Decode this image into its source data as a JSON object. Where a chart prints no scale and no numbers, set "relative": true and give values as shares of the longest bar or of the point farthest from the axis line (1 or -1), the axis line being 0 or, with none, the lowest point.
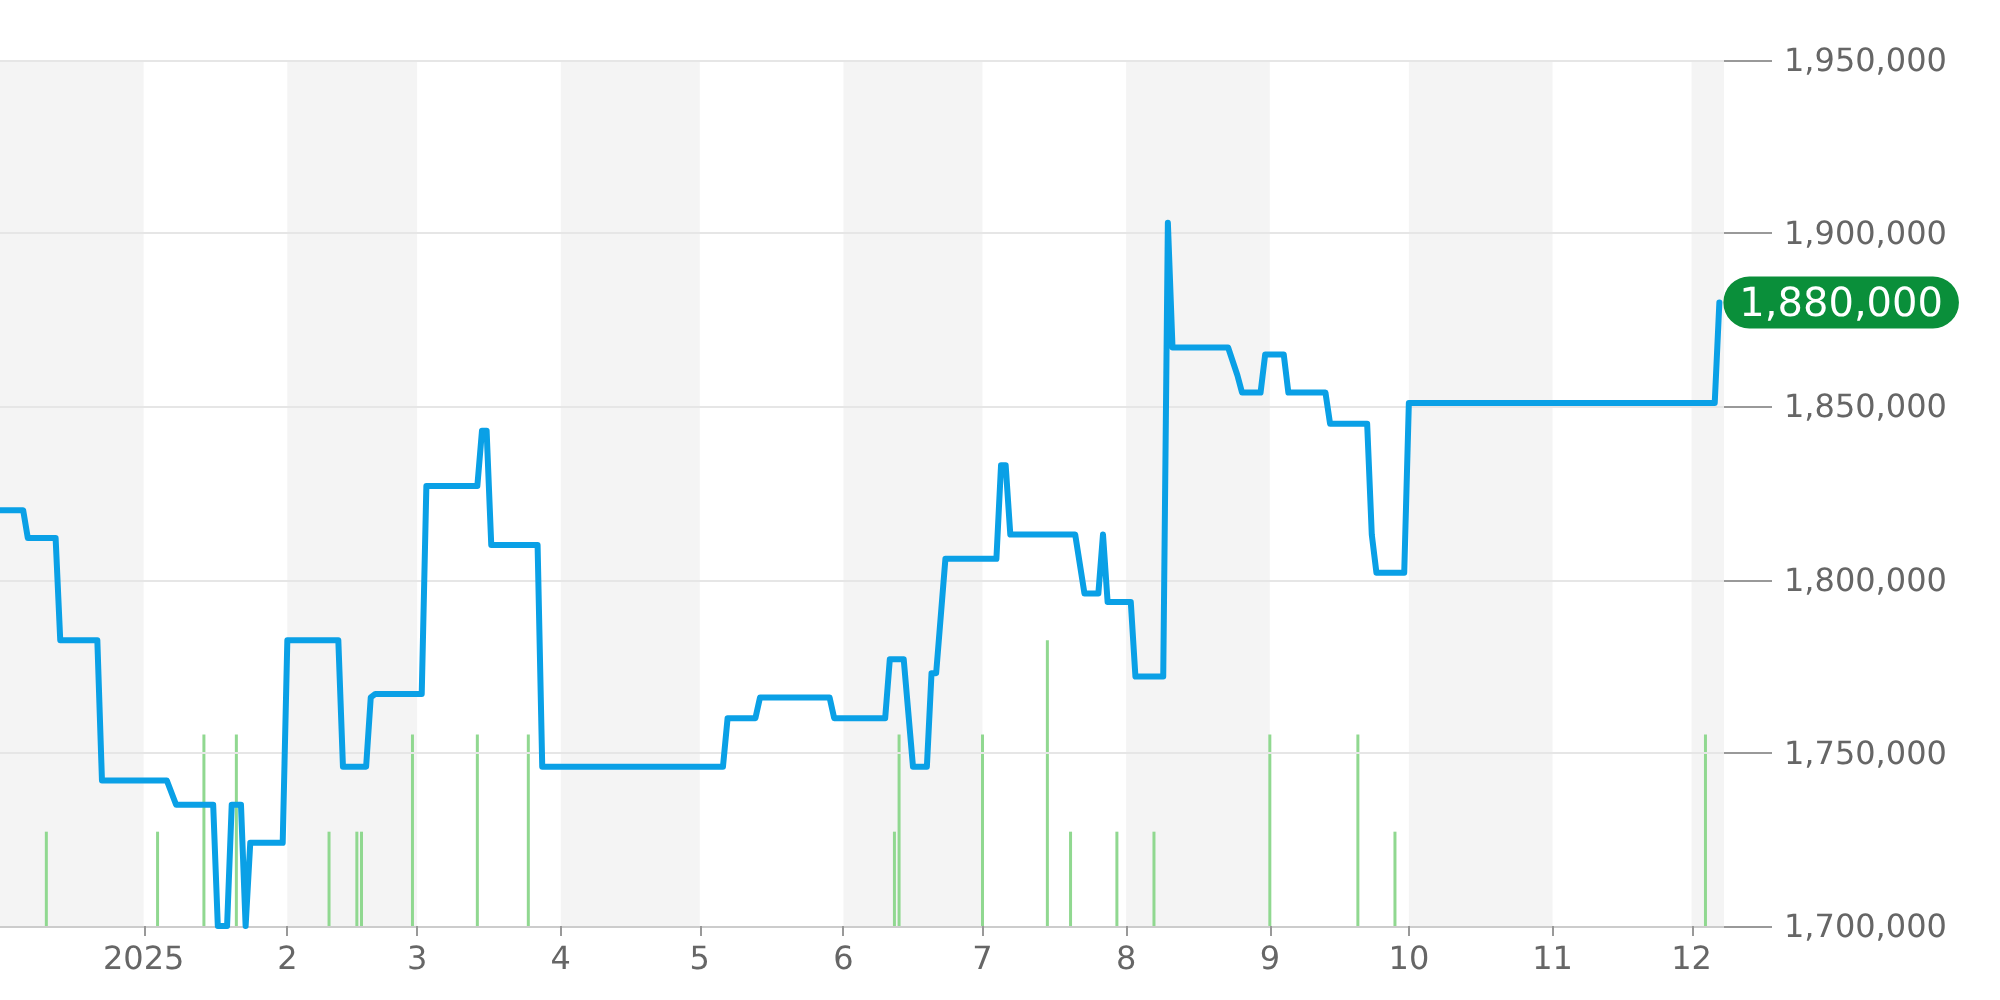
{
  "chart_data": [
    {
      "type": "line",
      "x": [
        "2024-12-01",
        "2024-12-06",
        "2024-12-07",
        "2024-12-13",
        "2024-12-14",
        "2024-12-22",
        "2024-12-23",
        "2025-01-06",
        "2025-01-08",
        "2025-01-16",
        "2025-01-17",
        "2025-01-19",
        "2025-01-20",
        "2025-01-22",
        "2025-01-23",
        "2025-01-24",
        "2025-01-31",
        "2025-02-01",
        "2025-02-12",
        "2025-02-13",
        "2025-02-18",
        "2025-02-19",
        "2025-02-20",
        "2025-03-02",
        "2025-03-03",
        "2025-03-14",
        "2025-03-15",
        "2025-03-16",
        "2025-03-17",
        "2025-03-27",
        "2025-03-28",
        "2025-05-06",
        "2025-05-07",
        "2025-05-13",
        "2025-05-14",
        "2025-05-29",
        "2025-05-30",
        "2025-06-10",
        "2025-06-11",
        "2025-06-14",
        "2025-06-16",
        "2025-06-19",
        "2025-06-20",
        "2025-06-21",
        "2025-06-23",
        "2025-07-04",
        "2025-07-05",
        "2025-07-06",
        "2025-07-07",
        "2025-07-21",
        "2025-07-23",
        "2025-07-26",
        "2025-07-27",
        "2025-07-28",
        "2025-08-02",
        "2025-08-03",
        "2025-08-09",
        "2025-08-10",
        "2025-08-11",
        "2025-08-23",
        "2025-08-25",
        "2025-08-26",
        "2025-08-30",
        "2025-08-31",
        "2025-09-04",
        "2025-09-05",
        "2025-09-13",
        "2025-09-14",
        "2025-09-22",
        "2025-09-23",
        "2025-09-24",
        "2025-09-30",
        "2025-10-01",
        "2025-12-06",
        "2025-12-07"
      ],
      "color": "#0aa0e6",
      "values": [
        1820000,
        1820000,
        1812000,
        1812000,
        1782500,
        1782500,
        1742000,
        1742000,
        1735000,
        1735000,
        1700000,
        1700000,
        1735000,
        1735000,
        1700000,
        1724000,
        1724000,
        1782500,
        1782500,
        1746000,
        1746000,
        1766000,
        1767000,
        1767000,
        1827000,
        1827000,
        1843000,
        1843000,
        1810000,
        1810000,
        1746000,
        1746000,
        1760000,
        1760000,
        1766000,
        1766000,
        1760000,
        1760000,
        1777000,
        1777000,
        1746000,
        1746000,
        1773000,
        1773000,
        1806000,
        1806000,
        1833000,
        1833000,
        1813000,
        1813000,
        1796000,
        1796000,
        1813000,
        1793500,
        1793500,
        1772000,
        1772000,
        1903000,
        1867000,
        1867000,
        1859000,
        1854000,
        1854000,
        1865000,
        1865000,
        1854000,
        1854000,
        1845000,
        1845000,
        1813000,
        1802000,
        1802000,
        1851000,
        1851000,
        1880000
      ],
      "annotations": [
        {
          "text": "1,880,000",
          "x": "2025-12-07",
          "y": 1880000
        }
      ],
      "xlim": [
        "2024-12-01",
        "2025-12-08"
      ],
      "xticks": [
        {
          "value": "2025-01-01",
          "label": "2025"
        },
        {
          "value": "2025-02-01",
          "label": "2"
        },
        {
          "value": "2025-03-01",
          "label": "3"
        },
        {
          "value": "2025-04-01",
          "label": "4"
        },
        {
          "value": "2025-05-01",
          "label": "5"
        },
        {
          "value": "2025-06-01",
          "label": "6"
        },
        {
          "value": "2025-07-01",
          "label": "7"
        },
        {
          "value": "2025-08-01",
          "label": "8"
        },
        {
          "value": "2025-09-01",
          "label": "9"
        },
        {
          "value": "2025-10-01",
          "label": "10"
        },
        {
          "value": "2025-11-01",
          "label": "11"
        },
        {
          "value": "2025-12-01",
          "label": "12"
        }
      ],
      "ylim": [
        1700000,
        1950000
      ],
      "yticks": [
        {
          "value": 1700000,
          "label": "1,700,000"
        },
        {
          "value": 1750000,
          "label": "1,750,000"
        },
        {
          "value": 1800000,
          "label": "1,800,000"
        },
        {
          "value": 1850000,
          "label": "1,850,000"
        },
        {
          "value": 1900000,
          "label": "1,900,000"
        },
        {
          "value": 1950000,
          "label": "1,950,000"
        }
      ],
      "grid": "y",
      "marker": "none",
      "line_style": "solid"
    },
    {
      "type": "bar",
      "relative": true,
      "color": "#90d890",
      "x": [
        "2024-12-11",
        "2025-01-04",
        "2025-01-14",
        "2025-01-21",
        "2025-02-10",
        "2025-02-16",
        "2025-02-17",
        "2025-02-28",
        "2025-03-14",
        "2025-03-25",
        "2025-06-12",
        "2025-06-13",
        "2025-07-01",
        "2025-07-15",
        "2025-07-20",
        "2025-07-30",
        "2025-08-07",
        "2025-09-01",
        "2025-09-20",
        "2025-09-28",
        "2025-12-04"
      ],
      "values": [
        0.33,
        0.33,
        0.67,
        0.67,
        0.33,
        0.33,
        0.33,
        0.67,
        0.67,
        0.67,
        0.33,
        0.67,
        0.67,
        1,
        0.33,
        0.33,
        0.33,
        0.67,
        0.67,
        0.33,
        0.67
      ],
      "xlim": [
        "2024-12-01",
        "2025-12-08"
      ],
      "bands": [
        {
          "axis": "x",
          "from": "2024-12-01",
          "to": "2025-01-01",
          "color": "#f4f4f4"
        },
        {
          "axis": "x",
          "from": "2025-02-01",
          "to": "2025-03-01",
          "color": "#f4f4f4"
        },
        {
          "axis": "x",
          "from": "2025-04-01",
          "to": "2025-05-01",
          "color": "#f4f4f4"
        },
        {
          "axis": "x",
          "from": "2025-06-01",
          "to": "2025-07-01",
          "color": "#f4f4f4"
        },
        {
          "axis": "x",
          "from": "2025-08-01",
          "to": "2025-09-01",
          "color": "#f4f4f4"
        },
        {
          "axis": "x",
          "from": "2025-10-01",
          "to": "2025-11-01",
          "color": "#f4f4f4"
        },
        {
          "axis": "x",
          "from": "2025-12-01",
          "to": "2025-12-08",
          "color": "#f4f4f4"
        }
      ]
    }
  ]
}
